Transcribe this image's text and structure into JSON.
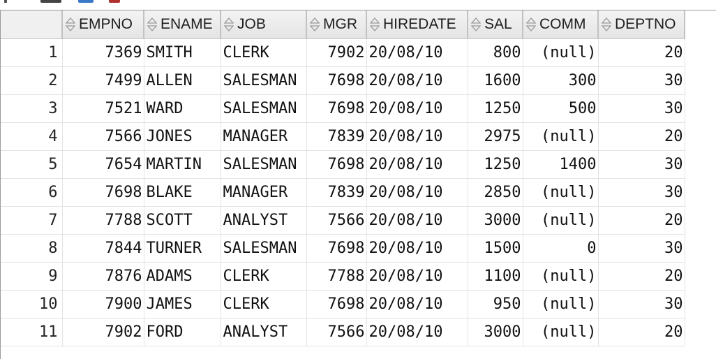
{
  "columns": [
    {
      "label": "EMPNO",
      "icon": "sort-icon"
    },
    {
      "label": "ENAME",
      "icon": "sort-icon"
    },
    {
      "label": "JOB",
      "icon": "sort-icon"
    },
    {
      "label": "MGR",
      "icon": "sort-icon"
    },
    {
      "label": "HIREDATE",
      "icon": "sort-icon"
    },
    {
      "label": "SAL",
      "icon": "sort-icon"
    },
    {
      "label": "COMM",
      "icon": "sort-icon"
    },
    {
      "label": "DEPTNO",
      "icon": "sort-icon"
    }
  ],
  "rows": [
    {
      "n": "1",
      "empno": "7369",
      "ename": "SMITH",
      "job": "CLERK",
      "mgr": "7902",
      "hiredate": "20/08/10",
      "sal": "800",
      "comm": "(null)",
      "deptno": "20"
    },
    {
      "n": "2",
      "empno": "7499",
      "ename": "ALLEN",
      "job": "SALESMAN",
      "mgr": "7698",
      "hiredate": "20/08/10",
      "sal": "1600",
      "comm": "300",
      "deptno": "30"
    },
    {
      "n": "3",
      "empno": "7521",
      "ename": "WARD",
      "job": "SALESMAN",
      "mgr": "7698",
      "hiredate": "20/08/10",
      "sal": "1250",
      "comm": "500",
      "deptno": "30"
    },
    {
      "n": "4",
      "empno": "7566",
      "ename": "JONES",
      "job": "MANAGER",
      "mgr": "7839",
      "hiredate": "20/08/10",
      "sal": "2975",
      "comm": "(null)",
      "deptno": "20"
    },
    {
      "n": "5",
      "empno": "7654",
      "ename": "MARTIN",
      "job": "SALESMAN",
      "mgr": "7698",
      "hiredate": "20/08/10",
      "sal": "1250",
      "comm": "1400",
      "deptno": "30"
    },
    {
      "n": "6",
      "empno": "7698",
      "ename": "BLAKE",
      "job": "MANAGER",
      "mgr": "7839",
      "hiredate": "20/08/10",
      "sal": "2850",
      "comm": "(null)",
      "deptno": "30"
    },
    {
      "n": "7",
      "empno": "7788",
      "ename": "SCOTT",
      "job": "ANALYST",
      "mgr": "7566",
      "hiredate": "20/08/10",
      "sal": "3000",
      "comm": "(null)",
      "deptno": "20"
    },
    {
      "n": "8",
      "empno": "7844",
      "ename": "TURNER",
      "job": "SALESMAN",
      "mgr": "7698",
      "hiredate": "20/08/10",
      "sal": "1500",
      "comm": "0",
      "deptno": "30"
    },
    {
      "n": "9",
      "empno": "7876",
      "ename": "ADAMS",
      "job": "CLERK",
      "mgr": "7788",
      "hiredate": "20/08/10",
      "sal": "1100",
      "comm": "(null)",
      "deptno": "20"
    },
    {
      "n": "10",
      "empno": "7900",
      "ename": "JAMES",
      "job": "CLERK",
      "mgr": "7698",
      "hiredate": "20/08/10",
      "sal": "950",
      "comm": "(null)",
      "deptno": "30"
    },
    {
      "n": "11",
      "empno": "7902",
      "ename": "FORD",
      "job": "ANALYST",
      "mgr": "7566",
      "hiredate": "20/08/10",
      "sal": "3000",
      "comm": "(null)",
      "deptno": "20"
    }
  ],
  "colors": {
    "header_bg": "#ececec",
    "grid_line": "#e3e3e3",
    "text": "#111111"
  }
}
